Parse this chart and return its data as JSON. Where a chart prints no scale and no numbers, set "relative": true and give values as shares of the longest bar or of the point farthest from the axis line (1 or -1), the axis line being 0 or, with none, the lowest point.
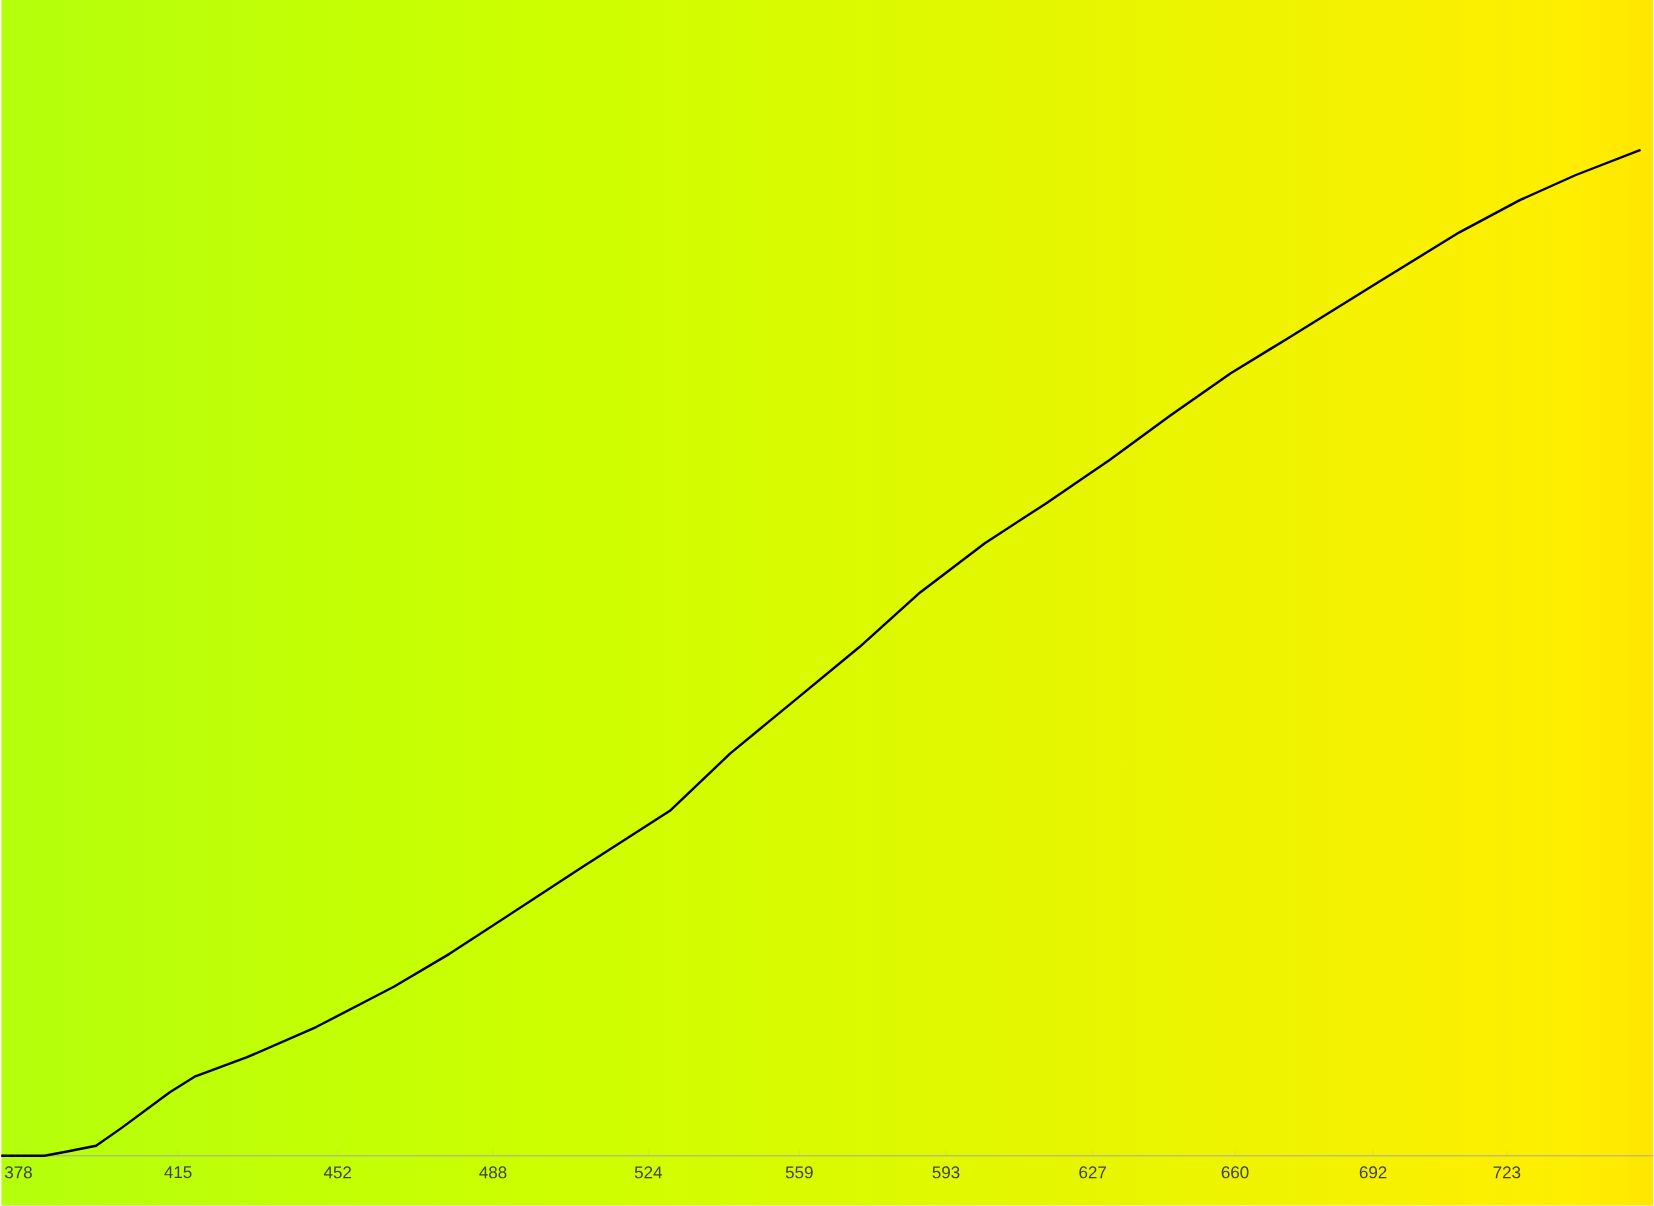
{
  "chart_data": {
    "type": "line",
    "relative": true,
    "color": "#000000",
    "x": [
      374,
      384,
      389,
      396,
      402,
      413,
      419,
      431,
      447,
      465,
      478,
      498,
      508,
      529,
      543,
      558,
      573,
      587,
      602,
      616,
      631,
      645,
      659,
      672,
      693,
      712,
      726,
      739,
      754
    ],
    "values": [
      0,
      0,
      0.004,
      0.01,
      0.028,
      0.063,
      0.079,
      0.098,
      0.128,
      0.168,
      0.201,
      0.257,
      0.285,
      0.343,
      0.4,
      0.453,
      0.506,
      0.56,
      0.609,
      0.648,
      0.692,
      0.736,
      0.778,
      0.812,
      0.868,
      0.918,
      0.95,
      0.975,
      1
    ],
    "xlim": [
      374,
      757
    ],
    "xticks": [
      378,
      415,
      452,
      488,
      524,
      559,
      593,
      627,
      660,
      692,
      723
    ]
  }
}
